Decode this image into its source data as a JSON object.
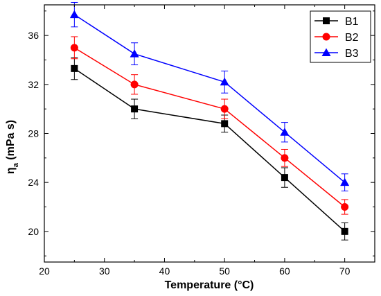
{
  "chart_data": {
    "type": "line",
    "title": "",
    "xlabel": "Temperature (°C)",
    "ylabel_main": "η",
    "ylabel_sub": "a",
    "ylabel_unit": " (mPa s)",
    "xlim": [
      20,
      75
    ],
    "ylim": [
      17.5,
      38.5
    ],
    "xticks": [
      20,
      30,
      40,
      50,
      60,
      70
    ],
    "yticks": [
      20,
      24,
      28,
      32,
      36
    ],
    "grid": false,
    "legend_position": "top-right",
    "x": [
      25,
      35,
      50,
      60,
      70
    ],
    "series": [
      {
        "name": "B1",
        "color": "#000000",
        "marker": "square",
        "values": [
          33.3,
          30.0,
          28.8,
          24.4,
          20.0
        ],
        "errors": [
          0.9,
          0.8,
          0.7,
          0.8,
          0.7
        ]
      },
      {
        "name": "B2",
        "color": "#ff0000",
        "marker": "circle",
        "values": [
          35.0,
          32.0,
          30.0,
          26.0,
          22.0
        ],
        "errors": [
          0.9,
          0.8,
          0.8,
          0.7,
          0.6
        ]
      },
      {
        "name": "B3",
        "color": "#0000ff",
        "marker": "triangle",
        "values": [
          37.7,
          34.5,
          32.2,
          28.1,
          24.0
        ],
        "errors": [
          1.0,
          0.9,
          0.9,
          0.8,
          0.7
        ]
      }
    ]
  }
}
